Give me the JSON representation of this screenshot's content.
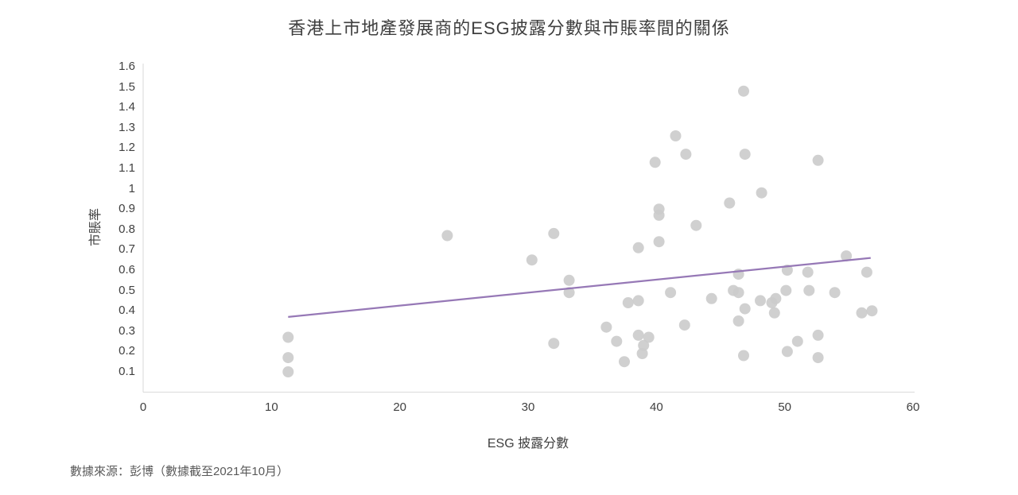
{
  "title": "香港上市地產發展商的ESG披露分數與市賬率間的關係",
  "source_note": "數據來源：彭博（數據截至2021年10月）",
  "colors": {
    "point": "#cbcbcb",
    "trendline": "#9678b6",
    "axis_line": "#d9d9d9",
    "text": "#404040"
  },
  "chart_data": {
    "type": "scatter",
    "title": "香港上市地產發展商的ESG披露分數與市賬率間的關係",
    "xlabel": "ESG 披露分數",
    "ylabel": "市賬率",
    "xlim": [
      0,
      60
    ],
    "ylim": [
      0,
      1.6
    ],
    "grid": false,
    "legend": false,
    "x_tick_values": [
      0,
      10,
      20,
      30,
      40,
      50,
      60
    ],
    "x_tick_labels": [
      "0",
      "10",
      "20",
      "30",
      "40",
      "50",
      "60"
    ],
    "y_tick_values": [
      1.6,
      1.5,
      1.4,
      1.3,
      1.2,
      1.1,
      1.0,
      0.9,
      0.8,
      0.7,
      0.6,
      0.5,
      0.4,
      0.3,
      0.2,
      0.1
    ],
    "y_tick_labels": [
      "1.6",
      "1.5",
      "1.4",
      "1.3",
      "1.2",
      "1.1",
      "1",
      "0.9",
      "0.8",
      "0.7",
      "0.6",
      "0.5",
      "0.4",
      "0.3",
      "0.2",
      "0.1"
    ],
    "points": [
      [
        11.3,
        0.27
      ],
      [
        11.3,
        0.17
      ],
      [
        11.3,
        0.1
      ],
      [
        23.7,
        0.77
      ],
      [
        30.3,
        0.65
      ],
      [
        32.0,
        0.78
      ],
      [
        32.0,
        0.24
      ],
      [
        33.2,
        0.55
      ],
      [
        33.2,
        0.49
      ],
      [
        36.1,
        0.32
      ],
      [
        36.9,
        0.25
      ],
      [
        37.5,
        0.15
      ],
      [
        37.8,
        0.44
      ],
      [
        38.6,
        0.45
      ],
      [
        38.6,
        0.71
      ],
      [
        38.6,
        0.28
      ],
      [
        38.9,
        0.19
      ],
      [
        39.0,
        0.23
      ],
      [
        39.4,
        0.27
      ],
      [
        39.9,
        1.13
      ],
      [
        40.2,
        0.9
      ],
      [
        40.2,
        0.87
      ],
      [
        40.2,
        0.74
      ],
      [
        41.1,
        0.49
      ],
      [
        41.5,
        1.26
      ],
      [
        42.2,
        0.33
      ],
      [
        42.3,
        1.17
      ],
      [
        43.1,
        0.82
      ],
      [
        44.3,
        0.46
      ],
      [
        45.7,
        0.93
      ],
      [
        46.0,
        0.5
      ],
      [
        46.4,
        0.49
      ],
      [
        46.4,
        0.58
      ],
      [
        46.4,
        0.35
      ],
      [
        46.8,
        1.48
      ],
      [
        46.8,
        0.18
      ],
      [
        46.9,
        1.17
      ],
      [
        46.9,
        0.41
      ],
      [
        48.1,
        0.45
      ],
      [
        48.2,
        0.98
      ],
      [
        49.0,
        0.44
      ],
      [
        49.2,
        0.39
      ],
      [
        49.3,
        0.46
      ],
      [
        50.1,
        0.5
      ],
      [
        50.2,
        0.6
      ],
      [
        50.2,
        0.2
      ],
      [
        51.0,
        0.25
      ],
      [
        51.8,
        0.59
      ],
      [
        51.9,
        0.5
      ],
      [
        52.6,
        1.14
      ],
      [
        52.6,
        0.28
      ],
      [
        52.6,
        0.17
      ],
      [
        53.9,
        0.49
      ],
      [
        54.8,
        0.67
      ],
      [
        56.0,
        0.39
      ],
      [
        56.4,
        0.59
      ],
      [
        56.8,
        0.4
      ]
    ],
    "trendline": {
      "x1": 11.3,
      "y1": 0.37,
      "x2": 56.7,
      "y2": 0.66
    }
  }
}
